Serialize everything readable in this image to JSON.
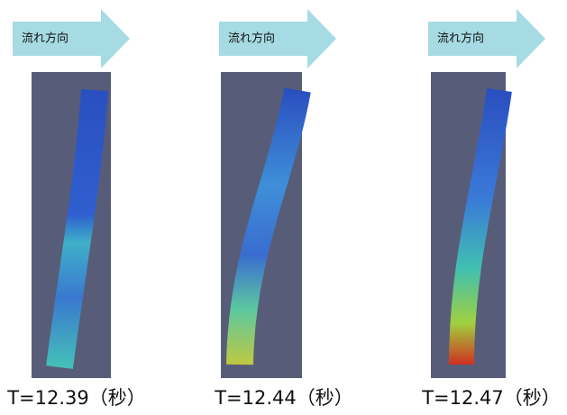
{
  "panels": [
    {
      "arrow_label": "流れ方向",
      "caption": "T=12.39（秒）"
    },
    {
      "arrow_label": "流れ方向",
      "caption": "T=12.44（秒）"
    },
    {
      "arrow_label": "流れ方向",
      "caption": "T=12.47（秒）"
    }
  ]
}
